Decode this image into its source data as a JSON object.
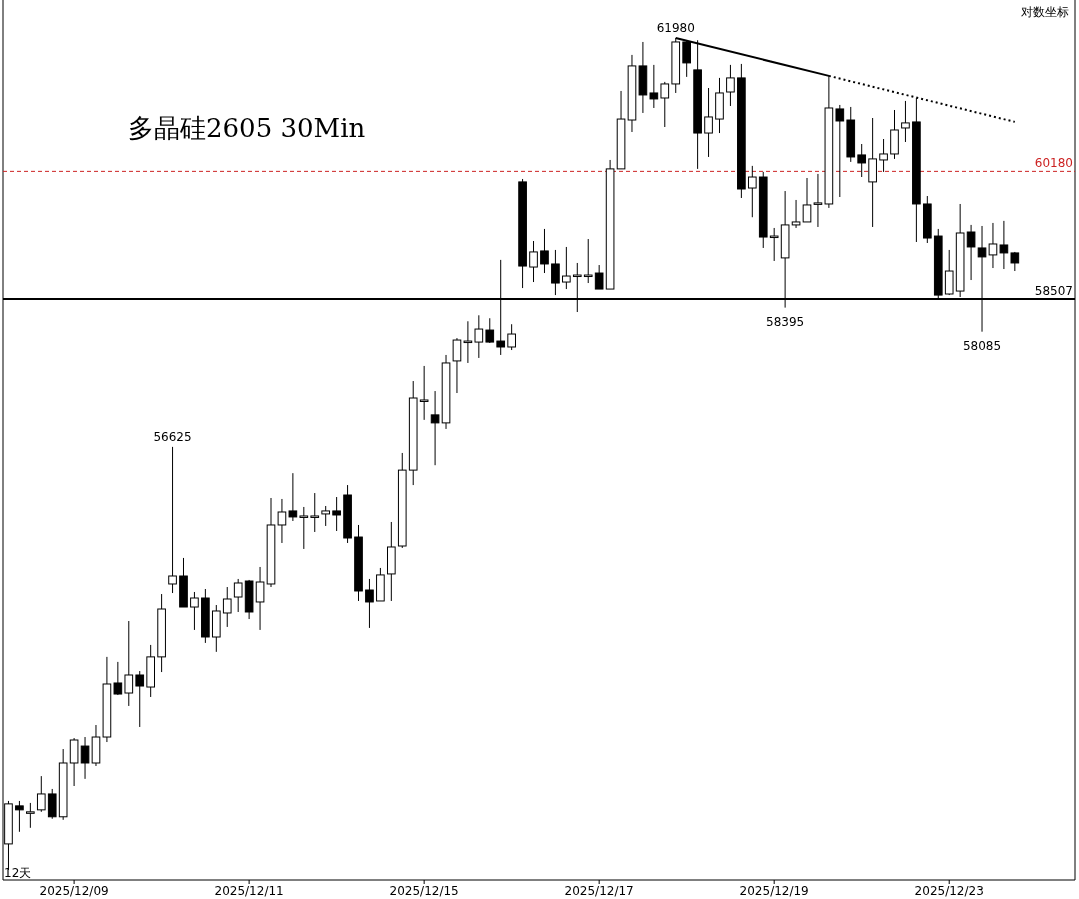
{
  "chart_data": {
    "type": "candlestick",
    "title": "多晶硅2605 30Min",
    "categories": [
      null,
      null,
      null,
      null,
      null,
      null,
      "2025/12/09",
      null,
      null,
      null,
      null,
      null,
      null,
      null,
      null,
      null,
      null,
      null,
      null,
      null,
      null,
      null,
      "2025/12/11",
      null,
      null,
      null,
      null,
      null,
      null,
      null,
      null,
      null,
      null,
      null,
      null,
      null,
      null,
      null,
      "2025/12/15",
      null,
      null,
      null,
      null,
      null,
      null,
      null,
      null,
      null,
      null,
      null,
      null,
      null,
      null,
      null,
      "2025/12/17",
      null,
      null,
      null,
      null,
      null,
      null,
      null,
      null,
      null,
      null,
      null,
      null,
      null,
      null,
      null,
      "2025/12/19",
      null,
      null,
      null,
      null,
      null,
      null,
      null,
      null,
      null,
      null,
      null,
      null,
      null,
      null,
      null,
      "2025/12/23",
      null,
      null,
      null,
      null,
      null,
      null
    ],
    "ohlc": [
      [
        51868,
        52363,
        51571,
        52329
      ],
      [
        52306,
        52363,
        52007,
        52260
      ],
      [
        52237,
        52340,
        52053,
        52237
      ],
      [
        52260,
        52651,
        52237,
        52444
      ],
      [
        52444,
        52502,
        52157,
        52180
      ],
      [
        52180,
        52967,
        52145,
        52804
      ],
      [
        52804,
        53096,
        52536,
        53073
      ],
      [
        53002,
        53108,
        52619,
        52804
      ],
      [
        52804,
        53249,
        52769,
        53108
      ],
      [
        53108,
        54057,
        53049,
        53734
      ],
      [
        53746,
        53997,
        53603,
        53615
      ],
      [
        53627,
        54487,
        53474,
        53841
      ],
      [
        53841,
        53888,
        53226,
        53710
      ],
      [
        53698,
        54200,
        53580,
        54057
      ],
      [
        54057,
        54813,
        53876,
        54632
      ],
      [
        54935,
        56625,
        54825,
        55032
      ],
      [
        55032,
        55252,
        54656,
        54656
      ],
      [
        54656,
        54838,
        54380,
        54765
      ],
      [
        54765,
        54874,
        54224,
        54295
      ],
      [
        54295,
        54680,
        54117,
        54608
      ],
      [
        54584,
        54898,
        54416,
        54753
      ],
      [
        54777,
        54996,
        54596,
        54947
      ],
      [
        54971,
        54984,
        54511,
        54596
      ],
      [
        54717,
        55142,
        54380,
        54959
      ],
      [
        54935,
        55989,
        54898,
        55656
      ],
      [
        55656,
        55977,
        55435,
        55816
      ],
      [
        55829,
        56297,
        55705,
        55755
      ],
      [
        55767,
        55878,
        55362,
        55767
      ],
      [
        55767,
        56050,
        55570,
        55767
      ],
      [
        55792,
        55890,
        55644,
        55829
      ],
      [
        55829,
        56001,
        55582,
        55779
      ],
      [
        56026,
        56149,
        55435,
        55496
      ],
      [
        55508,
        55656,
        54729,
        54850
      ],
      [
        54862,
        54996,
        54404,
        54717
      ],
      [
        54729,
        55130,
        54729,
        55045
      ],
      [
        55057,
        55693,
        54729,
        55386
      ],
      [
        55398,
        56549,
        55374,
        56335
      ],
      [
        56335,
        57455,
        56149,
        57240
      ],
      [
        57215,
        57647,
        56964,
        57215
      ],
      [
        57027,
        57328,
        56396,
        56926
      ],
      [
        56926,
        57787,
        56850,
        57685
      ],
      [
        57711,
        58003,
        57303,
        57978
      ],
      [
        57965,
        58219,
        57685,
        57965
      ],
      [
        57952,
        58296,
        57749,
        58119
      ],
      [
        58106,
        58258,
        57940,
        57952
      ],
      [
        57965,
        59014,
        57787,
        57889
      ],
      [
        57889,
        58181,
        57850,
        58055
      ],
      [
        60040,
        60079,
        58648,
        58934
      ],
      [
        58921,
        59261,
        58726,
        59118
      ],
      [
        59131,
        59419,
        58843,
        58961
      ],
      [
        58961,
        59144,
        58557,
        58713
      ],
      [
        58726,
        59183,
        58635,
        58804
      ],
      [
        58817,
        58974,
        58338,
        58817
      ],
      [
        58817,
        59287,
        58713,
        58817
      ],
      [
        58843,
        58947,
        58635,
        58635
      ],
      [
        58635,
        60332,
        58635,
        60213
      ],
      [
        60213,
        61259,
        60213,
        60880
      ],
      [
        60867,
        61749,
        60706,
        61599
      ],
      [
        61599,
        61926,
        60962,
        61205
      ],
      [
        61232,
        61613,
        61029,
        61151
      ],
      [
        61164,
        61382,
        60773,
        61354
      ],
      [
        61354,
        61980,
        61232,
        61926
      ],
      [
        61926,
        61953,
        61450,
        61640
      ],
      [
        61545,
        61950,
        60213,
        60692
      ],
      [
        60692,
        61299,
        60372,
        60908
      ],
      [
        60880,
        61436,
        60692,
        61232
      ],
      [
        61245,
        61613,
        61056,
        61436
      ],
      [
        61436,
        61626,
        59827,
        59946
      ],
      [
        59959,
        60253,
        59573,
        60105
      ],
      [
        60105,
        60173,
        59170,
        59313
      ],
      [
        59326,
        59432,
        59000,
        59326
      ],
      [
        59040,
        59919,
        58395,
        59472
      ],
      [
        59472,
        59801,
        59432,
        59511
      ],
      [
        59511,
        60092,
        59511,
        59735
      ],
      [
        59762,
        60146,
        59445,
        59762
      ],
      [
        59748,
        61463,
        59696,
        61029
      ],
      [
        61016,
        61070,
        59840,
        60854
      ],
      [
        60867,
        61043,
        60306,
        60372
      ],
      [
        60399,
        60545,
        60105,
        60292
      ],
      [
        60040,
        60894,
        59445,
        60346
      ],
      [
        60332,
        60612,
        60173,
        60412
      ],
      [
        60412,
        61002,
        60346,
        60733
      ],
      [
        60760,
        61124,
        60572,
        60828
      ],
      [
        60841,
        61164,
        59248,
        59748
      ],
      [
        59748,
        59853,
        59235,
        59300
      ],
      [
        59326,
        59419,
        58506,
        58557
      ],
      [
        58571,
        59144,
        58557,
        58869
      ],
      [
        58609,
        59748,
        58532,
        59366
      ],
      [
        59379,
        59472,
        58752,
        59183
      ],
      [
        59170,
        59458,
        58085,
        59053
      ],
      [
        59079,
        59498,
        58908,
        59222
      ],
      [
        59209,
        59525,
        58895,
        59105
      ],
      [
        59105,
        59118,
        58869,
        58974
      ]
    ],
    "series": [
      {
        "type": "line",
        "color": "#000000",
        "line_style": "solid",
        "values": [
          null,
          null,
          null,
          null,
          null,
          null,
          null,
          null,
          null,
          null,
          null,
          null,
          null,
          null,
          null,
          null,
          null,
          null,
          null,
          null,
          null,
          null,
          null,
          null,
          null,
          null,
          null,
          null,
          null,
          null,
          null,
          null,
          null,
          null,
          null,
          null,
          null,
          null,
          null,
          null,
          null,
          null,
          null,
          null,
          null,
          null,
          null,
          null,
          null,
          null,
          null,
          null,
          null,
          null,
          null,
          null,
          null,
          null,
          null,
          null,
          null,
          61980,
          null,
          null,
          null,
          null,
          null,
          null,
          null,
          null,
          null,
          null,
          null,
          null,
          null,
          61463,
          null,
          null,
          null,
          null,
          null,
          null,
          null,
          null,
          null,
          null,
          null,
          null,
          null,
          null,
          null,
          null,
          null
        ]
      },
      {
        "type": "line",
        "color": "#000000",
        "line_style": "dotted",
        "values": [
          null,
          null,
          null,
          null,
          null,
          null,
          null,
          null,
          null,
          null,
          null,
          null,
          null,
          null,
          null,
          null,
          null,
          null,
          null,
          null,
          null,
          null,
          null,
          null,
          null,
          null,
          null,
          null,
          null,
          null,
          null,
          null,
          null,
          null,
          null,
          null,
          null,
          null,
          null,
          null,
          null,
          null,
          null,
          null,
          null,
          null,
          null,
          null,
          null,
          null,
          null,
          null,
          null,
          null,
          null,
          null,
          null,
          null,
          null,
          null,
          null,
          null,
          null,
          null,
          null,
          null,
          null,
          null,
          null,
          null,
          null,
          null,
          null,
          null,
          null,
          61463,
          null,
          null,
          null,
          null,
          null,
          null,
          null,
          null,
          null,
          null,
          null,
          null,
          null,
          null,
          null,
          null,
          60841
        ]
      }
    ],
    "ref_lines": [
      {
        "axis": "y",
        "value": 60180,
        "label": "60180",
        "color": "#cc2222",
        "line_style": "dashed"
      },
      {
        "axis": "y",
        "value": 58507,
        "label": "58507",
        "color": "#000000",
        "line_style": "solid"
      }
    ],
    "annotations": [
      {
        "text": "56625",
        "y": 56625
      },
      {
        "text": "61980",
        "y": 61980
      },
      {
        "text": "58395",
        "y": 58395
      },
      {
        "text": "58085",
        "y": 58085
      },
      "12天",
      "对数坐标"
    ],
    "log": "y",
    "ylim": [
      51456,
      62503
    ],
    "tick_labels": "x"
  }
}
